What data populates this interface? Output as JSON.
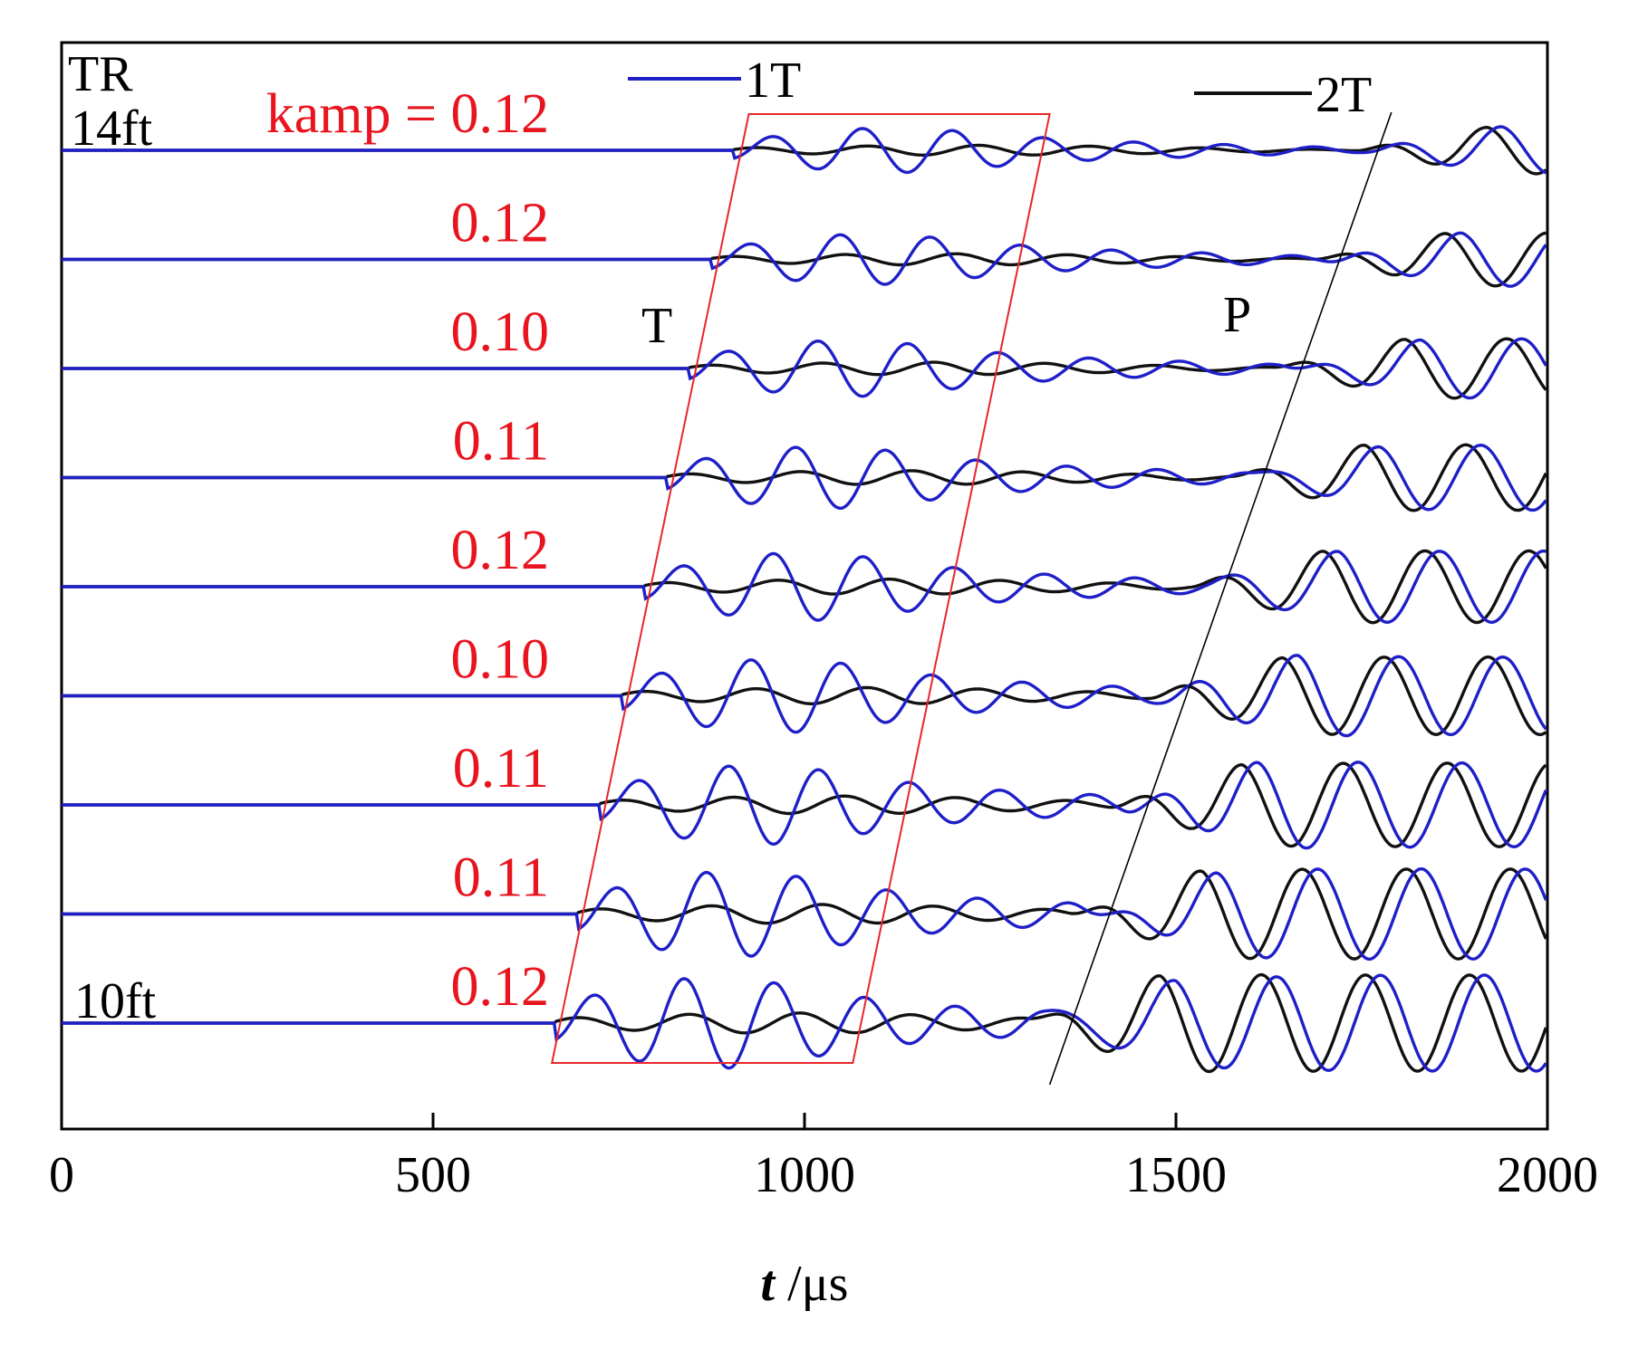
{
  "chart_data": {
    "type": "line",
    "title": "",
    "xlabel_italic": "t",
    "xlabel_unit": "/μs",
    "ylabel": "",
    "xlim": [
      0,
      2000
    ],
    "xticks": [
      0,
      500,
      1000,
      1500,
      2000
    ],
    "tick_labels": [
      "0",
      "500",
      "1000",
      "1500",
      "2000"
    ],
    "legend": [
      {
        "name": "1T",
        "color": "#1f1fc8"
      },
      {
        "name": "2T",
        "color": "#111111"
      }
    ],
    "colors": {
      "series_1T": "#1f1fc8",
      "series_2T": "#111111",
      "window": "#e8262a",
      "kamp": "#e8141e"
    },
    "annotations": {
      "tr": "TR",
      "top_offset": "14ft",
      "bottom_offset": "10ft",
      "t_wave": "T",
      "p_wave": "P",
      "kamp_prefix": "kamp = "
    },
    "traces": [
      {
        "offset_ft": 14,
        "kamp": "0.12",
        "t_onset_us": 925,
        "p_onset_us": 1800
      },
      {
        "offset_ft": 13.5,
        "kamp": "0.12",
        "t_onset_us": 895,
        "p_onset_us": 1745
      },
      {
        "offset_ft": 13,
        "kamp": "0.10",
        "t_onset_us": 865,
        "p_onset_us": 1690
      },
      {
        "offset_ft": 12.5,
        "kamp": "0.11",
        "t_onset_us": 835,
        "p_onset_us": 1635
      },
      {
        "offset_ft": 12,
        "kamp": "0.12",
        "t_onset_us": 805,
        "p_onset_us": 1580
      },
      {
        "offset_ft": 11.5,
        "kamp": "0.10",
        "t_onset_us": 775,
        "p_onset_us": 1525
      },
      {
        "offset_ft": 11,
        "kamp": "0.11",
        "t_onset_us": 745,
        "p_onset_us": 1470
      },
      {
        "offset_ft": 10.5,
        "kamp": "0.11",
        "t_onset_us": 715,
        "p_onset_us": 1415
      },
      {
        "offset_ft": 10,
        "kamp": "0.12",
        "t_onset_us": 685,
        "p_onset_us": 1360
      }
    ],
    "t_window_us": {
      "top_left": 925,
      "top_right": 1330,
      "bottom_left": 660,
      "bottom_right": 1065
    },
    "p_moveout_us": {
      "top": 1790,
      "bottom": 1330
    }
  }
}
